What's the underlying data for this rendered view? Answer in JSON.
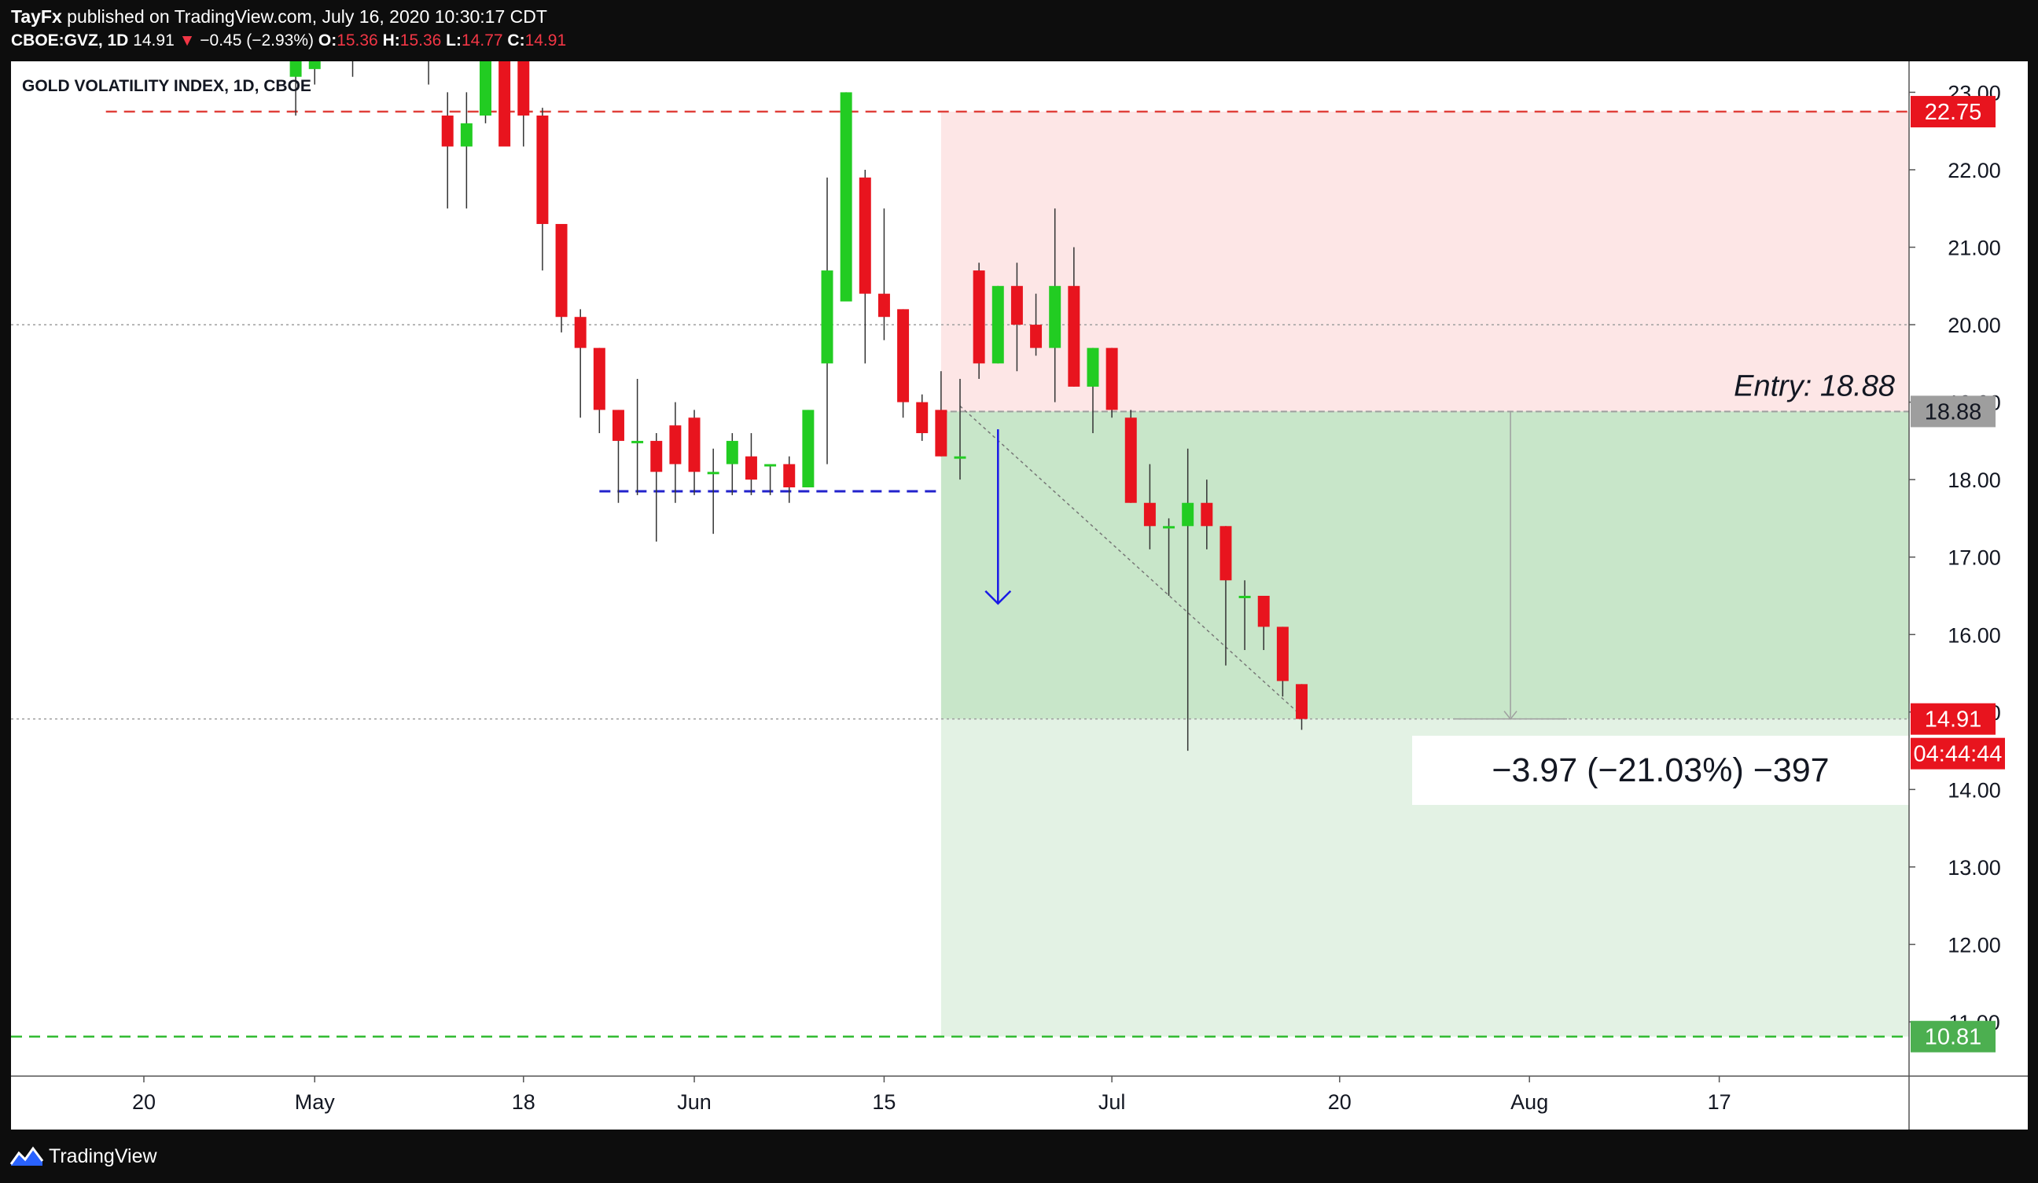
{
  "header": {
    "author": "TayFx",
    "published": "published on TradingView.com, July 16, 2020 10:30:17 CDT",
    "symbol": "CBOE:GVZ, 1D",
    "last": "14.91",
    "change_arrow": "▼",
    "change": "−0.45 (−2.93%)",
    "o_label": "O:",
    "o_value": "15.36",
    "h_label": "H:",
    "h_value": "15.36",
    "l_label": "L:",
    "l_value": "14.77",
    "c_label": "C:",
    "c_value": "14.91"
  },
  "footer": {
    "brand": "TradingView",
    "logo_icon": "tradingview-logo-icon"
  },
  "colors": {
    "up": "#22cc22",
    "down": "#e8141e",
    "stop_zone": "#fde6e6",
    "profit_zone": "#c8e6c9",
    "profit_zone_ext": "#e3f2e4",
    "stop_line": "#e0403a",
    "target_line": "#33bb33",
    "support_line": "#2222cc",
    "price_tag_red": "#e8141e",
    "price_tag_gray": "#9e9e9e",
    "price_tag_green": "#4caf50"
  },
  "chart_data": {
    "type": "candlestick",
    "title": "GOLD VOLATILITY INDEX, 1D, CBOE",
    "ylim": [
      10.3,
      23.4
    ],
    "y_ticks": [
      "11.00",
      "12.00",
      "13.00",
      "14.00",
      "15.00",
      "16.00",
      "17.00",
      "18.00",
      "19.00",
      "20.00",
      "21.00",
      "22.00",
      "23.00"
    ],
    "x_ticks": [
      {
        "label": "20",
        "d": 0
      },
      {
        "label": "May",
        "d": 9
      },
      {
        "label": "18",
        "d": 20
      },
      {
        "label": "Jun",
        "d": 29
      },
      {
        "label": "15",
        "d": 39
      },
      {
        "label": "Jul",
        "d": 51
      },
      {
        "label": "20",
        "d": 63
      },
      {
        "label": "Aug",
        "d": 73
      },
      {
        "label": "17",
        "d": 83
      }
    ],
    "x_range": [
      -7,
      93
    ],
    "candles": [
      {
        "d": 8,
        "o": 23.2,
        "h": 23.5,
        "l": 22.7,
        "c": 23.5
      },
      {
        "d": 9,
        "o": 23.3,
        "h": 23.5,
        "l": 23.1,
        "c": 23.5
      },
      {
        "d": 11,
        "o": 23.5,
        "h": 23.5,
        "l": 23.2,
        "c": 23.5
      },
      {
        "d": 15,
        "o": 23.5,
        "h": 23.5,
        "l": 23.1,
        "c": 23.5
      },
      {
        "d": 16,
        "o": 22.7,
        "h": 23.0,
        "l": 21.5,
        "c": 22.3
      },
      {
        "d": 17,
        "o": 22.3,
        "h": 23.0,
        "l": 21.5,
        "c": 22.6
      },
      {
        "d": 18,
        "o": 22.7,
        "h": 23.5,
        "l": 22.6,
        "c": 23.5
      },
      {
        "d": 19,
        "o": 23.5,
        "h": 23.5,
        "l": 22.4,
        "c": 22.3
      },
      {
        "d": 20,
        "o": 23.5,
        "h": 23.5,
        "l": 22.3,
        "c": 22.7
      },
      {
        "d": 21,
        "o": 22.7,
        "h": 22.8,
        "l": 20.7,
        "c": 21.3
      },
      {
        "d": 22,
        "o": 21.3,
        "h": 21.3,
        "l": 19.9,
        "c": 20.1
      },
      {
        "d": 23,
        "o": 20.1,
        "h": 20.2,
        "l": 18.8,
        "c": 19.7
      },
      {
        "d": 24,
        "o": 19.7,
        "h": 19.7,
        "l": 18.6,
        "c": 18.9
      },
      {
        "d": 25,
        "o": 18.9,
        "h": 18.9,
        "l": 17.7,
        "c": 18.5
      },
      {
        "d": 26,
        "o": 18.5,
        "h": 19.3,
        "l": 17.8,
        "c": 18.5
      },
      {
        "d": 27,
        "o": 18.5,
        "h": 18.6,
        "l": 17.2,
        "c": 18.1
      },
      {
        "d": 28,
        "o": 18.7,
        "h": 19.0,
        "l": 17.7,
        "c": 18.2
      },
      {
        "d": 29,
        "o": 18.8,
        "h": 18.9,
        "l": 17.8,
        "c": 18.1
      },
      {
        "d": 30,
        "o": 18.1,
        "h": 18.4,
        "l": 17.3,
        "c": 18.1
      },
      {
        "d": 31,
        "o": 18.2,
        "h": 18.6,
        "l": 17.8,
        "c": 18.5
      },
      {
        "d": 32,
        "o": 18.3,
        "h": 18.6,
        "l": 17.8,
        "c": 18.0
      },
      {
        "d": 33,
        "o": 18.2,
        "h": 18.2,
        "l": 17.8,
        "c": 18.2
      },
      {
        "d": 34,
        "o": 18.2,
        "h": 18.3,
        "l": 17.7,
        "c": 17.9
      },
      {
        "d": 35,
        "o": 17.9,
        "h": 18.9,
        "l": 17.9,
        "c": 18.9
      },
      {
        "d": 36,
        "o": 19.5,
        "h": 21.9,
        "l": 18.2,
        "c": 20.7
      },
      {
        "d": 37,
        "o": 20.3,
        "h": 23.0,
        "l": 20.3,
        "c": 23.0
      },
      {
        "d": 38,
        "o": 21.9,
        "h": 22.0,
        "l": 19.5,
        "c": 20.4
      },
      {
        "d": 39,
        "o": 20.4,
        "h": 21.5,
        "l": 19.8,
        "c": 20.1
      },
      {
        "d": 40,
        "o": 20.2,
        "h": 20.2,
        "l": 18.8,
        "c": 19.0
      },
      {
        "d": 41,
        "o": 19.0,
        "h": 19.1,
        "l": 18.5,
        "c": 18.6
      },
      {
        "d": 42,
        "o": 18.9,
        "h": 19.4,
        "l": 18.3,
        "c": 18.3
      },
      {
        "d": 43,
        "o": 18.3,
        "h": 19.3,
        "l": 18.0,
        "c": 18.3
      },
      {
        "d": 44,
        "o": 20.7,
        "h": 20.8,
        "l": 19.3,
        "c": 19.5
      },
      {
        "d": 45,
        "o": 19.5,
        "h": 20.5,
        "l": 19.5,
        "c": 20.5
      },
      {
        "d": 46,
        "o": 20.5,
        "h": 20.8,
        "l": 19.4,
        "c": 20.0
      },
      {
        "d": 47,
        "o": 20.0,
        "h": 20.4,
        "l": 19.6,
        "c": 19.7
      },
      {
        "d": 48,
        "o": 19.7,
        "h": 21.5,
        "l": 19.0,
        "c": 20.5
      },
      {
        "d": 49,
        "o": 20.5,
        "h": 21.0,
        "l": 19.2,
        "c": 19.2
      },
      {
        "d": 50,
        "o": 19.2,
        "h": 19.7,
        "l": 18.6,
        "c": 19.7
      },
      {
        "d": 51,
        "o": 19.7,
        "h": 19.7,
        "l": 18.8,
        "c": 18.9
      },
      {
        "d": 52,
        "o": 18.8,
        "h": 18.9,
        "l": 17.7,
        "c": 17.7
      },
      {
        "d": 53,
        "o": 17.7,
        "h": 18.2,
        "l": 17.1,
        "c": 17.4
      },
      {
        "d": 54,
        "o": 17.4,
        "h": 17.5,
        "l": 16.5,
        "c": 17.4
      },
      {
        "d": 55,
        "o": 17.4,
        "h": 18.4,
        "l": 14.5,
        "c": 17.7
      },
      {
        "d": 56,
        "o": 17.7,
        "h": 18.0,
        "l": 17.1,
        "c": 17.4
      },
      {
        "d": 57,
        "o": 17.4,
        "h": 17.4,
        "l": 15.6,
        "c": 16.7
      },
      {
        "d": 58,
        "o": 16.5,
        "h": 16.7,
        "l": 15.8,
        "c": 16.5
      },
      {
        "d": 59,
        "o": 16.5,
        "h": 16.5,
        "l": 15.8,
        "c": 16.1
      },
      {
        "d": 60,
        "o": 16.1,
        "h": 16.1,
        "l": 15.2,
        "c": 15.4
      },
      {
        "d": 61,
        "o": 15.36,
        "h": 15.36,
        "l": 14.77,
        "c": 14.91
      }
    ],
    "lines": {
      "stop": 22.75,
      "target": 10.81,
      "entry": 18.88,
      "current": 14.91,
      "midline": 20.0,
      "support": {
        "y": 17.85,
        "d_from": 24,
        "d_to": 42
      }
    },
    "position": {
      "type": "short",
      "d_start": 42,
      "d_end": 93,
      "entry": 18.88,
      "stop": 22.75,
      "target": 10.81,
      "current": 14.91,
      "entry_label": "Entry: 18.88",
      "result_label": "−3.97 (−21.03%) −397",
      "measure_d": 72
    },
    "projection_arrow": {
      "d": 45,
      "y_from": 18.65,
      "y_to": 16.4
    },
    "trendline": {
      "d_from": 43,
      "y_from": 18.95,
      "d_to": 61,
      "y_to": 14.95
    },
    "price_tags": [
      {
        "value": "22.75",
        "y": 22.75,
        "kind": "red"
      },
      {
        "value": "18.88",
        "y": 18.88,
        "kind": "gray"
      },
      {
        "value": "14.91",
        "y": 14.91,
        "kind": "red"
      },
      {
        "value": "10.81",
        "y": 10.81,
        "kind": "green"
      }
    ],
    "countdown": "04:44:44"
  }
}
